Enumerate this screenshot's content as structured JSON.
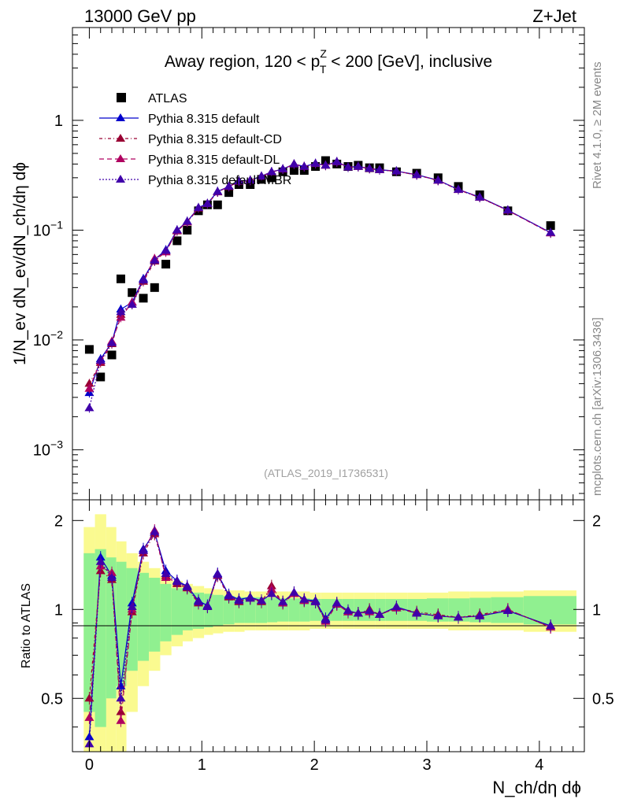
{
  "header": {
    "energy_label": "13000 GeV pp",
    "process_label": "Z+Jet",
    "title_pre": "Away region, 120 < p",
    "title_sup": "Z",
    "title_sub": "T",
    "title_post": " < 200 [GeV], inclusive",
    "watermark": "(ATLAS_2019_I1736531)",
    "side_version": "Rivet 4.1.0, ≥ 2M events",
    "side_site": "mcplots.cern.ch [arXiv:1306.3436]"
  },
  "axes": {
    "ylabel_main": "1/N_ev dN_ev/dN_ch/dη dϕ",
    "ylabel_ratio": "Ratio to ATLAS",
    "xlabel": "N_ch/dη dϕ",
    "main_tick_labels": [
      "1",
      "10",
      "10",
      "10"
    ],
    "main_tick_exps": [
      "",
      "−1",
      "−2",
      "−3"
    ],
    "x_tick_labels": [
      "0",
      "1",
      "2",
      "3",
      "4"
    ],
    "ratio_tick_labels": [
      "2",
      "1",
      "0.5"
    ]
  },
  "chart_data": {
    "type": "scatter",
    "xlim": [
      -0.15,
      4.4
    ],
    "ylim_main": [
      0.00035,
      7.0
    ],
    "ylog_main": true,
    "ylim_ratio": [
      0.33,
      2.35
    ],
    "ylog_ratio": true,
    "legend_position": "top-left",
    "x": [
      0.0,
      0.1,
      0.2,
      0.28,
      0.38,
      0.48,
      0.58,
      0.68,
      0.78,
      0.87,
      0.97,
      1.05,
      1.14,
      1.24,
      1.33,
      1.43,
      1.53,
      1.62,
      1.72,
      1.82,
      1.91,
      2.01,
      2.1,
      2.2,
      2.3,
      2.39,
      2.49,
      2.58,
      2.73,
      2.91,
      3.1,
      3.28,
      3.47,
      3.72,
      4.1
    ],
    "series": [
      {
        "name": "ATLAS",
        "color": "#000000",
        "marker": "square",
        "values": [
          0.0082,
          0.0046,
          0.0073,
          0.036,
          0.027,
          0.024,
          0.03,
          0.049,
          0.08,
          0.1,
          0.15,
          0.17,
          0.17,
          0.22,
          0.26,
          0.26,
          0.29,
          0.3,
          0.34,
          0.35,
          0.35,
          0.38,
          0.43,
          0.4,
          0.38,
          0.39,
          0.37,
          0.37,
          0.34,
          0.33,
          0.3,
          0.25,
          0.21,
          0.15,
          0.11
        ]
      },
      {
        "name": "Pythia 8.315 default",
        "color": "#0000cc",
        "marker": "triangle",
        "dash": "solid",
        "values": [
          0.0033,
          0.0067,
          0.0095,
          0.019,
          0.022,
          0.036,
          0.054,
          0.066,
          0.1,
          0.12,
          0.16,
          0.175,
          0.225,
          0.25,
          0.28,
          0.285,
          0.31,
          0.34,
          0.36,
          0.4,
          0.38,
          0.405,
          0.39,
          0.42,
          0.375,
          0.38,
          0.365,
          0.355,
          0.345,
          0.32,
          0.285,
          0.235,
          0.2,
          0.152,
          0.095
        ]
      },
      {
        "name": "Pythia 8.315 default-CD",
        "color": "#990033",
        "marker": "triangle",
        "dash": "4,3,1,3",
        "values": [
          0.004,
          0.0062,
          0.0092,
          0.017,
          0.021,
          0.034,
          0.052,
          0.064,
          0.098,
          0.118,
          0.158,
          0.173,
          0.222,
          0.248,
          0.277,
          0.283,
          0.308,
          0.338,
          0.358,
          0.398,
          0.378,
          0.402,
          0.388,
          0.417,
          0.373,
          0.378,
          0.363,
          0.353,
          0.343,
          0.318,
          0.283,
          0.233,
          0.198,
          0.151,
          0.094
        ]
      },
      {
        "name": "Pythia 8.315 default-DL",
        "color": "#b00060",
        "marker": "triangle",
        "dash": "6,4",
        "values": [
          0.0036,
          0.0064,
          0.0097,
          0.016,
          0.022,
          0.035,
          0.055,
          0.063,
          0.099,
          0.119,
          0.159,
          0.174,
          0.223,
          0.249,
          0.278,
          0.284,
          0.309,
          0.339,
          0.359,
          0.399,
          0.379,
          0.403,
          0.389,
          0.418,
          0.374,
          0.379,
          0.364,
          0.354,
          0.344,
          0.319,
          0.284,
          0.234,
          0.199,
          0.151,
          0.094
        ]
      },
      {
        "name": "Pythia 8.315 default-MBR",
        "color": "#4000aa",
        "marker": "triangle",
        "dash": "2,2",
        "values": [
          0.0024,
          0.0065,
          0.0094,
          0.018,
          0.021,
          0.035,
          0.053,
          0.065,
          0.1,
          0.12,
          0.16,
          0.174,
          0.224,
          0.25,
          0.279,
          0.284,
          0.31,
          0.339,
          0.36,
          0.399,
          0.379,
          0.404,
          0.389,
          0.419,
          0.374,
          0.379,
          0.364,
          0.354,
          0.344,
          0.319,
          0.284,
          0.234,
          0.199,
          0.152,
          0.095
        ]
      }
    ],
    "ratio_series": [
      {
        "name": "Pythia 8.315 default",
        "values": [
          0.37,
          1.5,
          1.3,
          0.55,
          1.05,
          1.6,
          1.82,
          1.35,
          1.25,
          1.2,
          1.07,
          1.03,
          1.32,
          1.12,
          1.08,
          1.1,
          1.07,
          1.13,
          1.06,
          1.14,
          1.08,
          1.07,
          0.93,
          1.05,
          0.99,
          0.97,
          0.99,
          0.96,
          1.02,
          0.97,
          0.95,
          0.94,
          0.95,
          0.99,
          0.88
        ]
      },
      {
        "name": "Pythia 8.315 default-CD",
        "values": [
          0.5,
          1.35,
          1.26,
          0.45,
          0.98,
          1.55,
          1.8,
          1.3,
          1.22,
          1.18,
          1.05,
          1.02,
          1.3,
          1.1,
          1.06,
          1.09,
          1.06,
          1.2,
          1.05,
          1.13,
          1.07,
          1.06,
          0.92,
          1.04,
          0.98,
          0.97,
          1.0,
          0.96,
          1.01,
          0.98,
          0.96,
          0.94,
          0.96,
          1.0,
          0.87
        ]
      },
      {
        "name": "Pythia 8.315 default-DL",
        "values": [
          0.43,
          1.4,
          1.33,
          0.42,
          1.0,
          1.58,
          1.85,
          1.28,
          1.24,
          1.19,
          1.06,
          1.02,
          1.31,
          1.11,
          1.07,
          1.09,
          1.07,
          1.17,
          1.05,
          1.13,
          1.07,
          1.06,
          0.91,
          1.04,
          0.98,
          0.97,
          0.98,
          0.96,
          1.01,
          0.97,
          0.95,
          0.94,
          0.95,
          1.0,
          0.87
        ]
      },
      {
        "name": "Pythia 8.315 default-MBR",
        "values": [
          0.35,
          1.45,
          1.28,
          0.5,
          1.02,
          1.58,
          1.83,
          1.32,
          1.24,
          1.19,
          1.06,
          1.02,
          1.31,
          1.11,
          1.07,
          1.09,
          1.07,
          1.13,
          1.06,
          1.14,
          1.08,
          1.06,
          0.92,
          1.05,
          0.99,
          0.97,
          0.99,
          0.96,
          1.02,
          0.97,
          0.95,
          0.94,
          0.95,
          0.99,
          0.88
        ]
      }
    ],
    "uncertainty_bands": {
      "x_edges": [
        -0.05,
        0.05,
        0.15,
        0.24,
        0.33,
        0.43,
        0.53,
        0.63,
        0.73,
        0.83,
        0.92,
        1.02,
        1.1,
        1.19,
        1.29,
        1.38,
        1.48,
        1.58,
        1.67,
        1.77,
        1.87,
        1.96,
        2.06,
        2.15,
        2.25,
        2.35,
        2.44,
        2.54,
        2.63,
        2.83,
        3.0,
        3.19,
        3.38,
        3.57,
        3.86,
        4.33
      ],
      "inner_half_width": [
        0.55,
        0.6,
        0.5,
        0.45,
        0.38,
        0.33,
        0.28,
        0.22,
        0.18,
        0.15,
        0.14,
        0.13,
        0.12,
        0.11,
        0.1,
        0.1,
        0.1,
        0.095,
        0.09,
        0.09,
        0.09,
        0.085,
        0.085,
        0.085,
        0.085,
        0.085,
        0.085,
        0.085,
        0.085,
        0.085,
        0.09,
        0.09,
        0.095,
        0.1,
        0.11
      ],
      "outer_half_width": [
        0.9,
        1.1,
        0.9,
        0.7,
        0.55,
        0.45,
        0.38,
        0.3,
        0.25,
        0.22,
        0.2,
        0.18,
        0.17,
        0.16,
        0.16,
        0.15,
        0.15,
        0.15,
        0.15,
        0.15,
        0.15,
        0.14,
        0.14,
        0.14,
        0.14,
        0.14,
        0.14,
        0.14,
        0.14,
        0.14,
        0.14,
        0.15,
        0.15,
        0.15,
        0.16
      ],
      "inner_color": "#90f090",
      "outer_color": "#fafa90"
    }
  }
}
